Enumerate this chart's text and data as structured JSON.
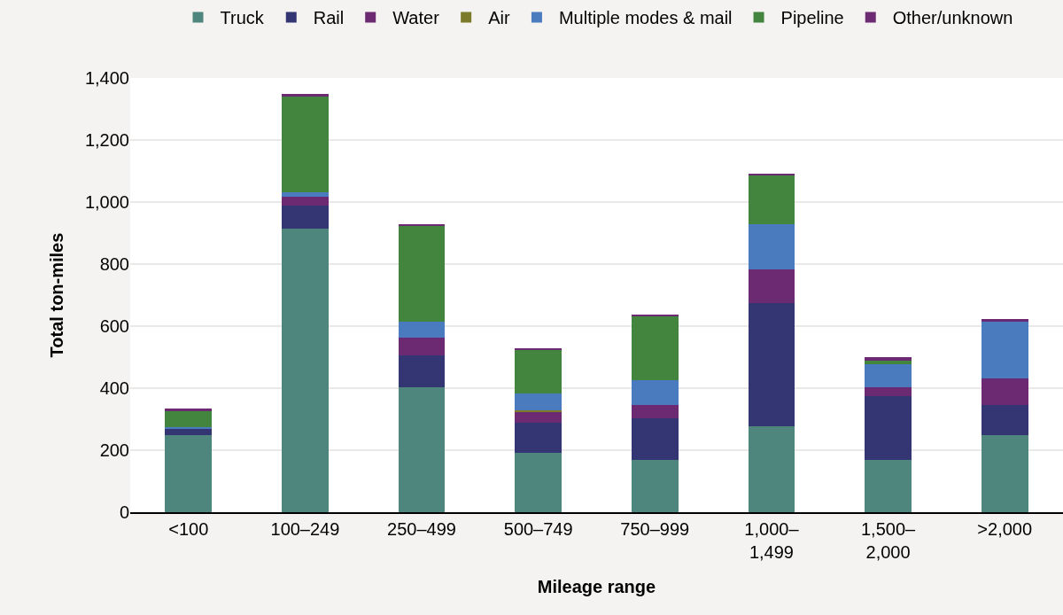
{
  "chart_data": {
    "type": "bar",
    "stacked": true,
    "xlabel": "Mileage range",
    "ylabel": "Total ton-miles",
    "categories": [
      "<100",
      "100–249",
      "250–499",
      "500–749",
      "750–999",
      "1,000–\n1,499",
      "1,500–\n2,000",
      ">2,000"
    ],
    "series": [
      {
        "name": "Truck",
        "color": "#4e857d",
        "values": [
          250,
          913,
          402,
          191,
          169,
          278,
          169,
          249
        ]
      },
      {
        "name": "Rail",
        "color": "#343673",
        "values": [
          20,
          76,
          105,
          97,
          133,
          397,
          205,
          96
        ]
      },
      {
        "name": "Water",
        "color": "#6b2a72",
        "values": [
          null,
          28,
          57,
          37,
          43,
          108,
          29,
          86
        ]
      },
      {
        "name": "Air",
        "color": "#7b7b2a",
        "values": [
          0,
          0,
          0,
          3,
          0,
          0,
          0,
          0
        ]
      },
      {
        "name": "Multiple modes & mail",
        "color": "#4a7bbf",
        "values": [
          5,
          15,
          51,
          54,
          80,
          146,
          74,
          184
        ]
      },
      {
        "name": "Pipeline",
        "color": "#43843e",
        "values": [
          52,
          307,
          308,
          141,
          207,
          157,
          12,
          0
        ]
      },
      {
        "name": "Other/unknown",
        "color": "#6b2a72",
        "values": [
          7,
          10,
          7,
          6,
          6,
          5,
          10,
          8
        ]
      }
    ],
    "ylim": [
      0,
      1400
    ],
    "yticks": [
      {
        "value": 0,
        "label": "0"
      },
      {
        "value": 200,
        "label": "200"
      },
      {
        "value": 400,
        "label": "400"
      },
      {
        "value": 600,
        "label": "600"
      },
      {
        "value": 800,
        "label": "800"
      },
      {
        "value": 1000,
        "label": "1,000"
      },
      {
        "value": 1200,
        "label": "1,200"
      },
      {
        "value": 1400,
        "label": "1,400"
      }
    ],
    "grid": "y",
    "legend": "top"
  }
}
